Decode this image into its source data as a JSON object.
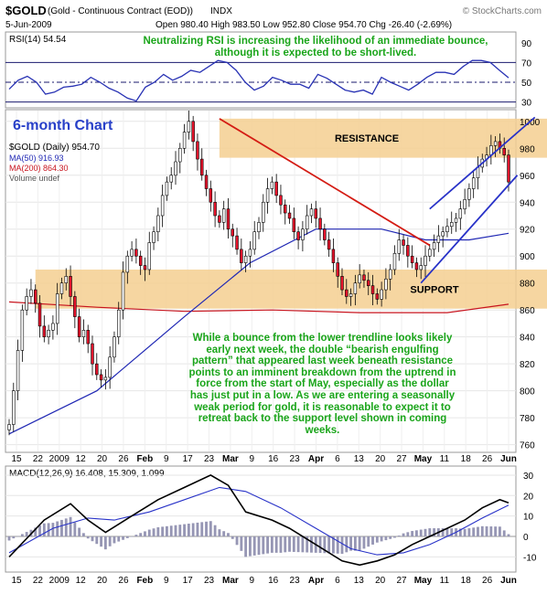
{
  "header": {
    "symbol": "$GOLD",
    "description": "(Gold - Continuous Contract (EOD))",
    "exchange": "INDX",
    "watermark": "© StockCharts.com",
    "date": "5-Jun-2009",
    "ohlc": "Open 980.40  High 983.50  Low 952.80  Close 954.70  Chg -26.40 (-2.69%)"
  },
  "colors": {
    "background": "#ffffff",
    "up_candle": "#ffffff",
    "down_candle": "#e8142c",
    "ma50": "#2028b4",
    "ma200": "#c8141e",
    "band": "#f5cf90",
    "annotation": "#1aa51a",
    "title": "#2840c8",
    "trendline_down": "#d41c14",
    "channel": "#2832c8",
    "volume_bar": "#9696b4"
  },
  "chart_data": [
    {
      "type": "line",
      "panel": "RSI",
      "legend": "RSI(14) 54.54",
      "ylim": [
        25,
        100
      ],
      "ticks": [
        90,
        70,
        50,
        30
      ],
      "reference_lines": [
        70,
        30
      ],
      "annotation": "Neutralizing RSI is increasing the likelihood of an immediate bounce, although it is expected to be short-lived.",
      "values": [
        43,
        52,
        56,
        50,
        38,
        40,
        45,
        46,
        48,
        55,
        50,
        44,
        40,
        34,
        31,
        45,
        50,
        58,
        52,
        56,
        62,
        60,
        66,
        72,
        70,
        62,
        50,
        42,
        46,
        55,
        52,
        48,
        48,
        44,
        58,
        54,
        48,
        42,
        40,
        42,
        38,
        55,
        50,
        46,
        42,
        48,
        55,
        60,
        60,
        58,
        66,
        72,
        72,
        70,
        62,
        54.54
      ]
    },
    {
      "type": "candlestick",
      "panel": "price",
      "title": "6-month Chart",
      "legend": [
        "$GOLD (Daily) 954.70",
        "MA(50) 916.93",
        "MA(200) 864.30",
        "Volume undef"
      ],
      "ylim": [
        755,
        1008
      ],
      "ticks": [
        1000,
        980,
        960,
        940,
        920,
        900,
        880,
        860,
        840,
        820,
        800,
        780,
        760
      ],
      "x_labels": [
        "15",
        "22",
        "2009",
        "12",
        "20",
        "26",
        "Feb",
        "9",
        "17",
        "23",
        "Mar",
        "9",
        "16",
        "23",
        "Apr",
        "6",
        "13",
        "20",
        "27",
        "May",
        "11",
        "18",
        "26",
        "Jun"
      ],
      "closes": [
        775,
        800,
        830,
        860,
        870,
        875,
        865,
        848,
        840,
        845,
        850,
        872,
        880,
        885,
        870,
        855,
        840,
        845,
        835,
        820,
        812,
        808,
        810,
        825,
        840,
        860,
        888,
        900,
        905,
        900,
        893,
        890,
        910,
        918,
        930,
        945,
        955,
        960,
        970,
        980,
        992,
        1000,
        985,
        972,
        960,
        950,
        940,
        930,
        925,
        935,
        920,
        915,
        905,
        895,
        900,
        905,
        918,
        925,
        940,
        950,
        955,
        945,
        938,
        932,
        928,
        918,
        912,
        920,
        930,
        935,
        928,
        920,
        912,
        905,
        895,
        885,
        875,
        870,
        872,
        880,
        886,
        882,
        878,
        872,
        868,
        875,
        883,
        890,
        902,
        912,
        908,
        900,
        895,
        890,
        893,
        900,
        905,
        910,
        915,
        918,
        922,
        925,
        928,
        935,
        942,
        950,
        958,
        966,
        972,
        975,
        982,
        985,
        980,
        975,
        955
      ],
      "ma50": [
        {
          "x": 0,
          "y": 768
        },
        {
          "x": 20,
          "y": 800
        },
        {
          "x": 40,
          "y": 855
        },
        {
          "x": 55,
          "y": 895
        },
        {
          "x": 70,
          "y": 920
        },
        {
          "x": 85,
          "y": 920
        },
        {
          "x": 95,
          "y": 912
        },
        {
          "x": 105,
          "y": 912
        },
        {
          "x": 114,
          "y": 916.93
        }
      ],
      "ma200": [
        {
          "x": 0,
          "y": 866
        },
        {
          "x": 20,
          "y": 862
        },
        {
          "x": 40,
          "y": 859
        },
        {
          "x": 60,
          "y": 860
        },
        {
          "x": 80,
          "y": 858
        },
        {
          "x": 100,
          "y": 858
        },
        {
          "x": 114,
          "y": 864.3
        }
      ],
      "bands": [
        {
          "label": "RESISTANCE",
          "from": 973,
          "to": 1002,
          "x_start": 48
        },
        {
          "label": "SUPPORT",
          "from": 861,
          "to": 890,
          "x_start": 6
        }
      ],
      "trendlines": [
        {
          "name": "downtrend",
          "points": [
            {
              "x": 48,
              "y": 1002
            },
            {
              "x": 96,
              "y": 908
            }
          ]
        },
        {
          "name": "channel-lower",
          "points": [
            {
              "x": 94,
              "y": 880
            },
            {
              "x": 116,
              "y": 960
            }
          ]
        },
        {
          "name": "channel-upper",
          "points": [
            {
              "x": 96,
              "y": 935
            },
            {
              "x": 120,
              "y": 1003
            }
          ]
        }
      ],
      "annotation": "While a bounce from the lower trendline looks likely early next week, the double “bearish engulfing pattern” that appeared last week beneath resistance points to an imminent breakdown from the uptrend in force from the start of May, especially as the dollar has just put in a low. As we are entering a seasonally weak period for gold, it is reasonable to expect it to retreat back to the support level shown in coming weeks."
    },
    {
      "type": "line",
      "panel": "MACD",
      "legend": "MACD(12,26,9) 16.408, 15.309, 1.099",
      "ylim": [
        -17,
        34
      ],
      "ticks": [
        30,
        20,
        10,
        0,
        -10
      ],
      "x_labels": [
        "15",
        "22",
        "2009",
        "12",
        "20",
        "26",
        "Feb",
        "9",
        "17",
        "23",
        "Mar",
        "9",
        "16",
        "23",
        "Apr",
        "6",
        "13",
        "20",
        "27",
        "May",
        "11",
        "18",
        "26",
        "Jun"
      ],
      "macd": [
        {
          "x": 0,
          "y": -10
        },
        {
          "x": 8,
          "y": 8
        },
        {
          "x": 14,
          "y": 16
        },
        {
          "x": 18,
          "y": 8
        },
        {
          "x": 22,
          "y": 2
        },
        {
          "x": 28,
          "y": 10
        },
        {
          "x": 34,
          "y": 18
        },
        {
          "x": 40,
          "y": 24
        },
        {
          "x": 46,
          "y": 30
        },
        {
          "x": 50,
          "y": 25
        },
        {
          "x": 54,
          "y": 12
        },
        {
          "x": 60,
          "y": 8
        },
        {
          "x": 64,
          "y": 4
        },
        {
          "x": 70,
          "y": -4
        },
        {
          "x": 76,
          "y": -12
        },
        {
          "x": 80,
          "y": -14
        },
        {
          "x": 84,
          "y": -12
        },
        {
          "x": 88,
          "y": -9
        },
        {
          "x": 92,
          "y": -4
        },
        {
          "x": 96,
          "y": 0
        },
        {
          "x": 100,
          "y": 4
        },
        {
          "x": 104,
          "y": 8
        },
        {
          "x": 108,
          "y": 14
        },
        {
          "x": 112,
          "y": 18
        },
        {
          "x": 114,
          "y": 16.4
        }
      ],
      "signal": [
        {
          "x": 0,
          "y": -8
        },
        {
          "x": 10,
          "y": 4
        },
        {
          "x": 18,
          "y": 9
        },
        {
          "x": 24,
          "y": 8
        },
        {
          "x": 32,
          "y": 12
        },
        {
          "x": 40,
          "y": 18
        },
        {
          "x": 48,
          "y": 24
        },
        {
          "x": 54,
          "y": 22
        },
        {
          "x": 62,
          "y": 14
        },
        {
          "x": 70,
          "y": 4
        },
        {
          "x": 78,
          "y": -6
        },
        {
          "x": 84,
          "y": -9
        },
        {
          "x": 90,
          "y": -8
        },
        {
          "x": 96,
          "y": -4
        },
        {
          "x": 102,
          "y": 2
        },
        {
          "x": 108,
          "y": 9
        },
        {
          "x": 114,
          "y": 15.3
        }
      ]
    }
  ]
}
